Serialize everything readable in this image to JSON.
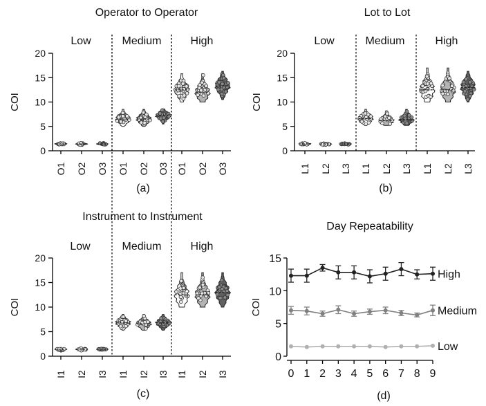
{
  "chart_data": [
    {
      "type": "violin",
      "panel_label": "(a)",
      "title": "Operator to Operator",
      "ylabel": "COI",
      "ylim": [
        0,
        20
      ],
      "yticks": [
        0,
        5,
        10,
        15,
        20
      ],
      "groups": [
        {
          "label": "Low",
          "categories": [
            "O1",
            "O2",
            "O3"
          ],
          "centers": [
            1.4,
            1.4,
            1.4
          ],
          "ranges": [
            [
              1.1,
              1.7
            ],
            [
              1.1,
              1.7
            ],
            [
              1.1,
              1.7
            ]
          ]
        },
        {
          "label": "Medium",
          "categories": [
            "O1",
            "O2",
            "O3"
          ],
          "centers": [
            6.5,
            6.5,
            7.2
          ],
          "ranges": [
            [
              5.0,
              8.5
            ],
            [
              5.0,
              8.5
            ],
            [
              5.5,
              8.6
            ]
          ]
        },
        {
          "label": "High",
          "categories": [
            "O1",
            "O2",
            "O3"
          ],
          "centers": [
            12.5,
            12.0,
            13.3
          ],
          "ranges": [
            [
              10.0,
              15.8
            ],
            [
              10.0,
              15.8
            ],
            [
              10.5,
              16.3
            ]
          ]
        }
      ]
    },
    {
      "type": "violin",
      "panel_label": "(b)",
      "title": "Lot to Lot",
      "ylabel": "COI",
      "ylim": [
        0,
        20
      ],
      "yticks": [
        0,
        5,
        10,
        15,
        20
      ],
      "groups": [
        {
          "label": "Low",
          "categories": [
            "L1",
            "L2",
            "L3"
          ],
          "centers": [
            1.4,
            1.4,
            1.4
          ],
          "ranges": [
            [
              1.1,
              1.7
            ],
            [
              1.1,
              1.7
            ],
            [
              1.1,
              1.7
            ]
          ]
        },
        {
          "label": "Medium",
          "categories": [
            "L1",
            "L2",
            "L3"
          ],
          "centers": [
            6.6,
            6.2,
            6.4
          ],
          "ranges": [
            [
              5.2,
              8.5
            ],
            [
              5.2,
              8.2
            ],
            [
              5.2,
              8.5
            ]
          ]
        },
        {
          "label": "High",
          "categories": [
            "L1",
            "L2",
            "L3"
          ],
          "centers": [
            12.5,
            12.5,
            13.0
          ],
          "ranges": [
            [
              10.0,
              17.0
            ],
            [
              10.0,
              17.0
            ],
            [
              10.0,
              16.3
            ]
          ]
        }
      ]
    },
    {
      "type": "violin",
      "panel_label": "(c)",
      "title": "Instrument to Instrument",
      "ylabel": "COI",
      "ylim": [
        0,
        20
      ],
      "yticks": [
        0,
        5,
        10,
        15,
        20
      ],
      "groups": [
        {
          "label": "Low",
          "categories": [
            "I1",
            "I2",
            "I3"
          ],
          "centers": [
            1.4,
            1.4,
            1.4
          ],
          "ranges": [
            [
              1.1,
              1.7
            ],
            [
              1.1,
              1.7
            ],
            [
              1.1,
              1.7
            ]
          ]
        },
        {
          "label": "Medium",
          "categories": [
            "I1",
            "I2",
            "I3"
          ],
          "centers": [
            6.8,
            6.6,
            6.8
          ],
          "ranges": [
            [
              5.3,
              8.5
            ],
            [
              5.3,
              8.5
            ],
            [
              5.3,
              8.5
            ]
          ]
        },
        {
          "label": "High",
          "categories": [
            "I1",
            "I2",
            "I3"
          ],
          "centers": [
            12.5,
            12.5,
            13.0
          ],
          "ranges": [
            [
              10.0,
              17.0
            ],
            [
              10.0,
              17.0
            ],
            [
              10.0,
              17.0
            ]
          ]
        }
      ]
    },
    {
      "type": "line",
      "panel_label": "(d)",
      "title": "Day Repeatability",
      "ylabel": "COI",
      "xlabel": "",
      "xlim": [
        0,
        9
      ],
      "ylim": [
        0,
        15
      ],
      "x": [
        0,
        1,
        2,
        3,
        4,
        5,
        6,
        7,
        8,
        9
      ],
      "xticks": [
        0,
        1,
        2,
        3,
        4,
        5,
        6,
        7,
        8,
        9
      ],
      "yticks": [
        0,
        5,
        10,
        15
      ],
      "series": [
        {
          "name": "High",
          "color": "#222222",
          "values": [
            12.3,
            12.3,
            13.5,
            12.8,
            12.8,
            12.2,
            12.6,
            13.3,
            12.5,
            12.6
          ],
          "errors": [
            1.0,
            1.0,
            0.5,
            1.0,
            1.0,
            1.0,
            1.0,
            1.0,
            0.7,
            1.0
          ]
        },
        {
          "name": "Medium",
          "color": "#808080",
          "values": [
            7.0,
            6.9,
            6.5,
            7.1,
            6.5,
            6.8,
            7.0,
            6.6,
            6.3,
            7.0
          ],
          "errors": [
            0.6,
            0.6,
            0.4,
            0.6,
            0.4,
            0.4,
            0.5,
            0.4,
            0.3,
            0.8
          ]
        },
        {
          "name": "Low",
          "color": "#b0b0b0",
          "values": [
            1.5,
            1.4,
            1.5,
            1.5,
            1.5,
            1.5,
            1.4,
            1.5,
            1.5,
            1.6
          ],
          "errors": [
            0.1,
            0.1,
            0.1,
            0.1,
            0.1,
            0.1,
            0.1,
            0.1,
            0.1,
            0.1
          ]
        }
      ]
    }
  ]
}
